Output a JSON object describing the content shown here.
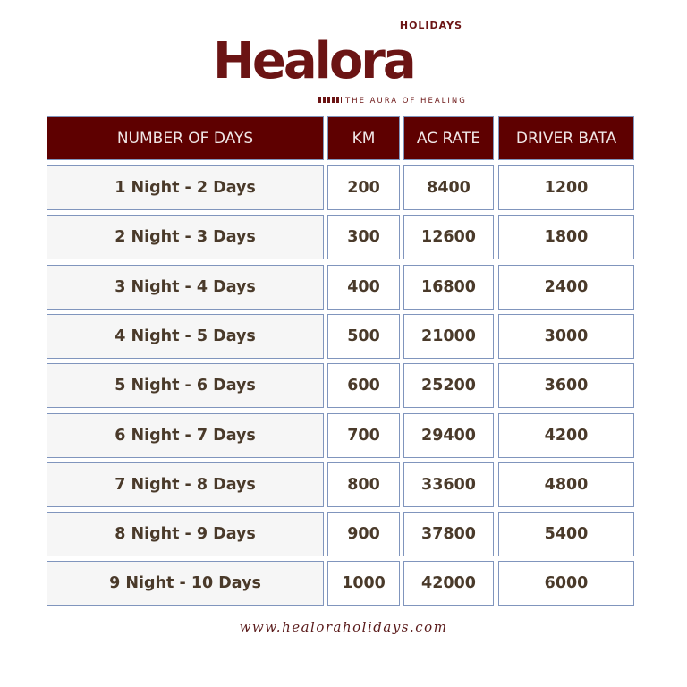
{
  "logo": {
    "brand": "Healora",
    "sub": "HOLIDAYS",
    "tagline": "THE AURA OF HEALING",
    "color": "#6b1414"
  },
  "table": {
    "headers": [
      "NUMBER OF DAYS",
      "KM",
      "AC RATE",
      "DRIVER BATA"
    ],
    "header_color": "#5e0000",
    "rows": [
      [
        "1 Night - 2 Days",
        "200",
        "8400",
        "1200"
      ],
      [
        "2 Night - 3 Days",
        "300",
        "12600",
        "1800"
      ],
      [
        "3 Night - 4 Days",
        "400",
        "16800",
        "2400"
      ],
      [
        "4 Night - 5 Days",
        "500",
        "21000",
        "3000"
      ],
      [
        "5 Night - 6 Days",
        "600",
        "25200",
        "3600"
      ],
      [
        "6 Night - 7 Days",
        "700",
        "29400",
        "4200"
      ],
      [
        "7 Night - 8 Days",
        "800",
        "33600",
        "4800"
      ],
      [
        "8 Night - 9 Days",
        "900",
        "37800",
        "5400"
      ],
      [
        "9 Night - 10 Days",
        "1000",
        "42000",
        "6000"
      ]
    ]
  },
  "footer": {
    "url": "www.healoraholidays.com"
  }
}
